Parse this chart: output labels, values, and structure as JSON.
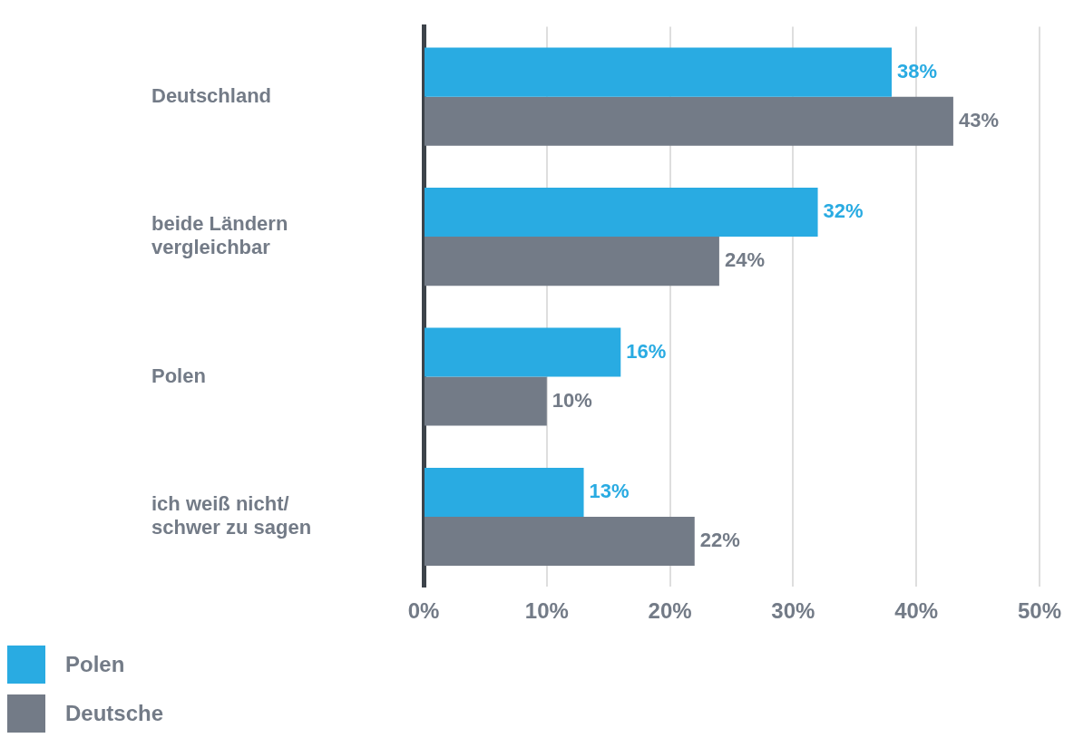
{
  "chart_data": {
    "type": "bar",
    "orientation": "horizontal",
    "categories": [
      "Deutschland",
      "beide Ländern vergleichbar",
      "Polen",
      "ich weiß nicht/ schwer zu sagen"
    ],
    "series": [
      {
        "name": "Polen",
        "color": "#29abe2",
        "values": [
          38,
          32,
          16,
          13
        ],
        "value_labels": [
          "38%",
          "32%",
          "16%",
          "13%"
        ]
      },
      {
        "name": "Deutsche",
        "color": "#737b87",
        "values": [
          43,
          24,
          10,
          22
        ],
        "value_labels": [
          "43%",
          "24%",
          "10%",
          "22%"
        ]
      }
    ],
    "xlim": [
      0,
      50
    ],
    "xticks": [
      {
        "value": 0,
        "label": "0%"
      },
      {
        "value": 10,
        "label": "10%"
      },
      {
        "value": 20,
        "label": "20%"
      },
      {
        "value": 30,
        "label": "30%"
      },
      {
        "value": 40,
        "label": "40%"
      },
      {
        "value": 50,
        "label": "50%"
      }
    ],
    "grid": "x",
    "legend": "bottom left"
  }
}
